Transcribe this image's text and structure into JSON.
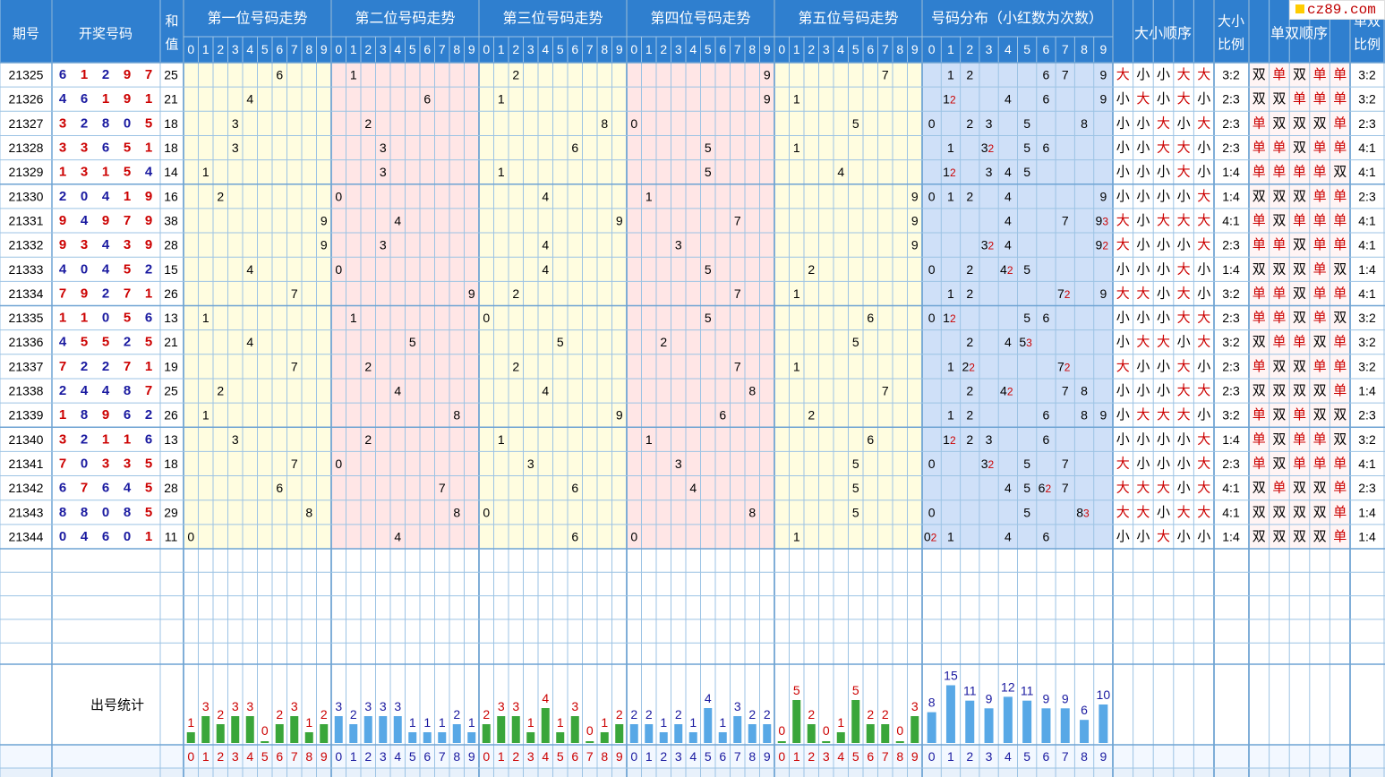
{
  "headers": {
    "period": "期号",
    "numbers": "开奖号码",
    "sum": "和\n值",
    "positions": [
      "第一位号码走势",
      "第二位号码走势",
      "第三位号码走势",
      "第四位号码走势",
      "第五位号码走势"
    ],
    "distribution": "号码分布（小红数为次数）",
    "size_order": "大小顺序",
    "size_ratio": "大小\n比例",
    "oddeven_order": "单双顺序",
    "oddeven_ratio": "单双\n比例"
  },
  "digits": [
    "0",
    "1",
    "2",
    "3",
    "4",
    "5",
    "6",
    "7",
    "8",
    "9"
  ],
  "stats_label": "出号统计",
  "logo": "cz89.com",
  "colors": {
    "border": "#9cc3e4",
    "header_bg": "#2f7fcf",
    "pos_odd_bg": "#fffde0",
    "pos_even_bg": "#ffe6e6",
    "dist_bg": "#cfe0f8",
    "num_blue": "#1a1aa0",
    "num_red": "#cc0000",
    "bar_green": "#3aa63a",
    "bar_blue": "#58a8e6"
  },
  "chart_data": {
    "type": "table",
    "rows": [
      {
        "period": "21325",
        "nums": [
          6,
          1,
          2,
          9,
          7
        ],
        "sum": 25,
        "dist": {
          "1": 1,
          "2": 1,
          "6": 1,
          "7": 1,
          "9": 1
        },
        "size": [
          "大",
          "小",
          "小",
          "大",
          "大"
        ],
        "sratio": "3:2",
        "oe": [
          "双",
          "单",
          "双",
          "单",
          "单"
        ],
        "oratio": "3:2"
      },
      {
        "period": "21326",
        "nums": [
          4,
          6,
          1,
          9,
          1
        ],
        "sum": 21,
        "dist": {
          "1": 2,
          "4": 1,
          "6": 1,
          "9": 1
        },
        "size": [
          "小",
          "大",
          "小",
          "大",
          "小"
        ],
        "sratio": "2:3",
        "oe": [
          "双",
          "双",
          "单",
          "单",
          "单"
        ],
        "oratio": "3:2"
      },
      {
        "period": "21327",
        "nums": [
          3,
          2,
          8,
          0,
          5
        ],
        "sum": 18,
        "dist": {
          "0": 1,
          "2": 1,
          "3": 1,
          "5": 1,
          "8": 1
        },
        "size": [
          "小",
          "小",
          "大",
          "小",
          "大"
        ],
        "sratio": "2:3",
        "oe": [
          "单",
          "双",
          "双",
          "双",
          "单"
        ],
        "oratio": "2:3"
      },
      {
        "period": "21328",
        "nums": [
          3,
          3,
          6,
          5,
          1
        ],
        "sum": 18,
        "dist": {
          "1": 1,
          "3": 2,
          "5": 1,
          "6": 1
        },
        "size": [
          "小",
          "小",
          "大",
          "大",
          "小"
        ],
        "sratio": "2:3",
        "oe": [
          "单",
          "单",
          "双",
          "单",
          "单"
        ],
        "oratio": "4:1"
      },
      {
        "period": "21329",
        "nums": [
          1,
          3,
          1,
          5,
          4
        ],
        "sum": 14,
        "dist": {
          "1": 2,
          "3": 1,
          "4": 1,
          "5": 1
        },
        "size": [
          "小",
          "小",
          "小",
          "大",
          "小"
        ],
        "sratio": "1:4",
        "oe": [
          "单",
          "单",
          "单",
          "单",
          "双"
        ],
        "oratio": "4:1"
      },
      {
        "period": "21330",
        "nums": [
          2,
          0,
          4,
          1,
          9
        ],
        "sum": 16,
        "dist": {
          "0": 1,
          "1": 1,
          "2": 1,
          "4": 1,
          "9": 1
        },
        "size": [
          "小",
          "小",
          "小",
          "小",
          "大"
        ],
        "sratio": "1:4",
        "oe": [
          "双",
          "双",
          "双",
          "单",
          "单"
        ],
        "oratio": "2:3"
      },
      {
        "period": "21331",
        "nums": [
          9,
          4,
          9,
          7,
          9
        ],
        "sum": 38,
        "dist": {
          "4": 1,
          "7": 1,
          "9": 3
        },
        "size": [
          "大",
          "小",
          "大",
          "大",
          "大"
        ],
        "sratio": "4:1",
        "oe": [
          "单",
          "双",
          "单",
          "单",
          "单"
        ],
        "oratio": "4:1"
      },
      {
        "period": "21332",
        "nums": [
          9,
          3,
          4,
          3,
          9
        ],
        "sum": 28,
        "dist": {
          "3": 2,
          "4": 1,
          "9": 2
        },
        "size": [
          "大",
          "小",
          "小",
          "小",
          "大"
        ],
        "sratio": "2:3",
        "oe": [
          "单",
          "单",
          "双",
          "单",
          "单"
        ],
        "oratio": "4:1"
      },
      {
        "period": "21333",
        "nums": [
          4,
          0,
          4,
          5,
          2
        ],
        "sum": 15,
        "dist": {
          "0": 1,
          "2": 1,
          "4": 2,
          "5": 1
        },
        "size": [
          "小",
          "小",
          "小",
          "大",
          "小"
        ],
        "sratio": "1:4",
        "oe": [
          "双",
          "双",
          "双",
          "单",
          "双"
        ],
        "oratio": "1:4"
      },
      {
        "period": "21334",
        "nums": [
          7,
          9,
          2,
          7,
          1
        ],
        "sum": 26,
        "dist": {
          "1": 1,
          "2": 1,
          "7": 2,
          "9": 1
        },
        "size": [
          "大",
          "大",
          "小",
          "大",
          "小"
        ],
        "sratio": "3:2",
        "oe": [
          "单",
          "单",
          "双",
          "单",
          "单"
        ],
        "oratio": "4:1"
      },
      {
        "period": "21335",
        "nums": [
          1,
          1,
          0,
          5,
          6
        ],
        "sum": 13,
        "dist": {
          "0": 1,
          "1": 2,
          "5": 1,
          "6": 1
        },
        "size": [
          "小",
          "小",
          "小",
          "大",
          "大"
        ],
        "sratio": "2:3",
        "oe": [
          "单",
          "单",
          "双",
          "单",
          "双"
        ],
        "oratio": "3:2"
      },
      {
        "period": "21336",
        "nums": [
          4,
          5,
          5,
          2,
          5
        ],
        "sum": 21,
        "dist": {
          "2": 1,
          "4": 1,
          "5": 3
        },
        "size": [
          "小",
          "大",
          "大",
          "小",
          "大"
        ],
        "sratio": "3:2",
        "oe": [
          "双",
          "单",
          "单",
          "双",
          "单"
        ],
        "oratio": "3:2"
      },
      {
        "period": "21337",
        "nums": [
          7,
          2,
          2,
          7,
          1
        ],
        "sum": 19,
        "dist": {
          "1": 1,
          "2": 2,
          "7": 2
        },
        "size": [
          "大",
          "小",
          "小",
          "大",
          "小"
        ],
        "sratio": "2:3",
        "oe": [
          "单",
          "双",
          "双",
          "单",
          "单"
        ],
        "oratio": "3:2"
      },
      {
        "period": "21338",
        "nums": [
          2,
          4,
          4,
          8,
          7
        ],
        "sum": 25,
        "dist": {
          "2": 1,
          "4": 2,
          "7": 1,
          "8": 1
        },
        "size": [
          "小",
          "小",
          "小",
          "大",
          "大"
        ],
        "sratio": "2:3",
        "oe": [
          "双",
          "双",
          "双",
          "双",
          "单"
        ],
        "oratio": "1:4"
      },
      {
        "period": "21339",
        "nums": [
          1,
          8,
          9,
          6,
          2
        ],
        "sum": 26,
        "dist": {
          "1": 1,
          "2": 1,
          "6": 1,
          "8": 1,
          "9": 1
        },
        "size": [
          "小",
          "大",
          "大",
          "大",
          "小"
        ],
        "sratio": "3:2",
        "oe": [
          "单",
          "双",
          "单",
          "双",
          "双"
        ],
        "oratio": "2:3"
      },
      {
        "period": "21340",
        "nums": [
          3,
          2,
          1,
          1,
          6
        ],
        "sum": 13,
        "dist": {
          "1": 2,
          "2": 1,
          "3": 1,
          "6": 1
        },
        "size": [
          "小",
          "小",
          "小",
          "小",
          "大"
        ],
        "sratio": "1:4",
        "oe": [
          "单",
          "双",
          "单",
          "单",
          "双"
        ],
        "oratio": "3:2"
      },
      {
        "period": "21341",
        "nums": [
          7,
          0,
          3,
          3,
          5
        ],
        "sum": 18,
        "dist": {
          "0": 1,
          "3": 2,
          "5": 1,
          "7": 1
        },
        "size": [
          "大",
          "小",
          "小",
          "小",
          "大"
        ],
        "sratio": "2:3",
        "oe": [
          "单",
          "双",
          "单",
          "单",
          "单"
        ],
        "oratio": "4:1"
      },
      {
        "period": "21342",
        "nums": [
          6,
          7,
          6,
          4,
          5
        ],
        "sum": 28,
        "dist": {
          "4": 1,
          "5": 1,
          "6": 2,
          "7": 1
        },
        "size": [
          "大",
          "大",
          "大",
          "小",
          "大"
        ],
        "sratio": "4:1",
        "oe": [
          "双",
          "单",
          "双",
          "双",
          "单"
        ],
        "oratio": "2:3"
      },
      {
        "period": "21343",
        "nums": [
          8,
          8,
          0,
          8,
          5
        ],
        "sum": 29,
        "dist": {
          "0": 1,
          "5": 1,
          "8": 3
        },
        "size": [
          "大",
          "大",
          "小",
          "大",
          "大"
        ],
        "sratio": "4:1",
        "oe": [
          "双",
          "双",
          "双",
          "双",
          "单"
        ],
        "oratio": "1:4"
      },
      {
        "period": "21344",
        "nums": [
          0,
          4,
          6,
          0,
          1
        ],
        "sum": 11,
        "dist": {
          "0": 2,
          "1": 1,
          "4": 1,
          "6": 1
        },
        "size": [
          "小",
          "小",
          "大",
          "小",
          "小"
        ],
        "sratio": "1:4",
        "oe": [
          "双",
          "双",
          "双",
          "双",
          "单"
        ],
        "oratio": "1:4"
      }
    ],
    "position_counts": [
      [
        1,
        3,
        2,
        3,
        3,
        0,
        2,
        3,
        1,
        2
      ],
      [
        3,
        2,
        3,
        3,
        3,
        1,
        1,
        1,
        2,
        1
      ],
      [
        2,
        3,
        3,
        1,
        4,
        1,
        3,
        0,
        1,
        2
      ],
      [
        2,
        2,
        1,
        2,
        1,
        4,
        1,
        3,
        2,
        2
      ],
      [
        0,
        5,
        2,
        0,
        1,
        5,
        2,
        2,
        0,
        3
      ]
    ],
    "distribution_counts": [
      8,
      15,
      11,
      9,
      12,
      11,
      9,
      9,
      6,
      10
    ]
  }
}
